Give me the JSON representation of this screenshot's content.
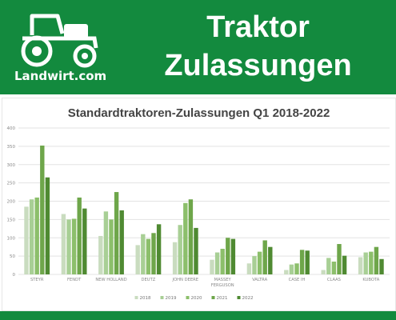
{
  "header": {
    "logo_text": "Landwirt.com",
    "title_line1": "Traktor",
    "title_line2": "Zulassungen"
  },
  "colors": {
    "brand_green": "#138a3e",
    "series": [
      "#c9dcbf",
      "#a8cf95",
      "#8cbf6b",
      "#6ea64a",
      "#4f8a32"
    ]
  },
  "chart_data": {
    "type": "bar",
    "title": "Standardtraktoren-Zulassungen Q1 2018-2022",
    "categories": [
      "STEYR",
      "FENDT",
      "NEW HOLLAND",
      "DEUTZ",
      "JOHN DEERE",
      "MASSEY FERGUSON",
      "VALTRA",
      "CASE IH",
      "CLAAS",
      "KUBOTA"
    ],
    "category_labels": [
      "STEYR",
      "FENDT",
      "NEW HOLLAND",
      "DEUTZ",
      "JOHN DEERE",
      "MASSEY FERGUSON",
      "VALTRA",
      "CASE IH",
      "CLAAS",
      "KUBOTA"
    ],
    "series": [
      {
        "name": "2018",
        "values": [
          185,
          165,
          105,
          80,
          88,
          40,
          30,
          12,
          12,
          47
        ]
      },
      {
        "name": "2019",
        "values": [
          205,
          150,
          172,
          110,
          135,
          60,
          50,
          27,
          45,
          60
        ]
      },
      {
        "name": "2020",
        "values": [
          210,
          152,
          150,
          97,
          195,
          70,
          62,
          30,
          35,
          62
        ]
      },
      {
        "name": "2021",
        "values": [
          352,
          210,
          225,
          113,
          205,
          100,
          93,
          67,
          83,
          75
        ]
      },
      {
        "name": "2022",
        "values": [
          265,
          180,
          175,
          137,
          127,
          97,
          75,
          65,
          51,
          42
        ]
      }
    ],
    "ylim": [
      0,
      400
    ],
    "yticks": [
      0,
      50,
      100,
      150,
      200,
      250,
      300,
      350,
      400
    ],
    "grid": true,
    "legend_position": "bottom"
  }
}
